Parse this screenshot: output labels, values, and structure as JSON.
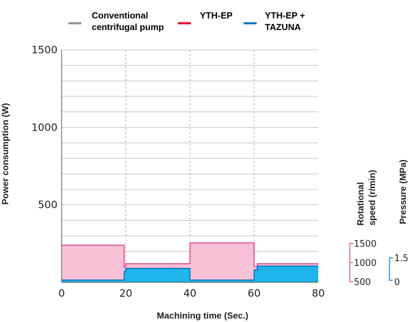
{
  "legend": [
    {
      "label_lines": [
        "Conventional",
        "centrifugal pump"
      ],
      "color": "#8c8c8c"
    },
    {
      "label_lines": [
        "YTH-EP"
      ],
      "color": "#e0001b"
    },
    {
      "label_lines": [
        "YTH-EP +",
        "TAZUNA"
      ],
      "color": "#0072bc"
    }
  ],
  "colors": {
    "pink_fill": "#f7c1d6",
    "pink_line": "#e0478a",
    "blue_fill": "#1fb4ea",
    "blue_line": "#0072bc",
    "grid": "#c8c8c8",
    "axis": "#555555"
  },
  "chart_data": {
    "type": "area",
    "ylabel": "Power consumption (W)",
    "xlabel": "Machining time (Sec.)",
    "xlim": [
      0,
      80
    ],
    "ylim": [
      0,
      1500
    ],
    "y_ticks": [
      500,
      1000,
      1500
    ],
    "x_ticks": [
      0,
      20,
      40,
      60,
      80
    ],
    "grid": true,
    "y_gridline_step": 100,
    "x_dashed_lines": [
      20,
      40,
      60
    ],
    "series": [
      {
        "color_key": "pink",
        "x": [
          0,
          19.5,
          19.5,
          20,
          20,
          40,
          40,
          60,
          60,
          61,
          61,
          80
        ],
        "values": [
          240,
          240,
          100,
          100,
          120,
          120,
          255,
          255,
          100,
          100,
          120,
          120
        ]
      },
      {
        "color_key": "blue",
        "x": [
          0,
          19,
          19.5,
          19.5,
          20,
          20,
          40,
          40,
          60,
          60,
          61,
          61,
          80
        ],
        "values": [
          15,
          15,
          15,
          70,
          70,
          90,
          90,
          15,
          15,
          80,
          80,
          105,
          105
        ]
      }
    ],
    "rotational_speed": {
      "label_lines": [
        "Rotational",
        "speed (r/min)"
      ],
      "ticks": [
        "1500",
        "1000",
        "500"
      ]
    },
    "pressure": {
      "label": "Pressure (MPa)",
      "ticks": [
        "1.5",
        "0"
      ]
    }
  }
}
